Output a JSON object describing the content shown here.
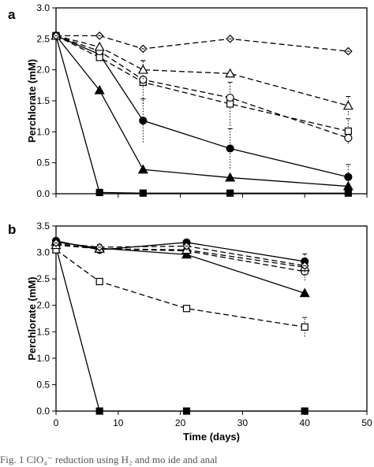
{
  "chart_data": [
    {
      "panel": "a",
      "type": "line",
      "ylabel": "Perchlorate (mM)",
      "xlabel": "",
      "xlim": [
        0,
        50
      ],
      "ylim": [
        0,
        3.0
      ],
      "yticks": [
        "0.0",
        "0.5",
        "1.0",
        "1.5",
        "2.0",
        "2.5",
        "3.0"
      ],
      "grid": false,
      "series": [
        {
          "marker": "square-filled",
          "line": "solid",
          "x": [
            0,
            7,
            14,
            28,
            47
          ],
          "y": [
            2.55,
            0.02,
            0.01,
            0.01,
            0.01
          ]
        },
        {
          "marker": "triangle-filled",
          "line": "solid",
          "x": [
            0,
            7,
            14,
            28,
            47
          ],
          "y": [
            2.55,
            1.67,
            0.39,
            0.26,
            0.12
          ]
        },
        {
          "marker": "circle-filled",
          "line": "solid",
          "x": [
            0,
            7,
            14,
            28,
            47
          ],
          "y": [
            2.55,
            2.25,
            1.18,
            0.73,
            0.27
          ],
          "err": [
            0,
            0,
            0.35,
            0.32,
            0.2
          ]
        },
        {
          "marker": "square-open",
          "line": "dashed",
          "x": [
            0,
            7,
            14,
            28,
            47
          ],
          "y": [
            2.55,
            2.2,
            1.8,
            1.45,
            1.01
          ],
          "err": [
            0,
            0,
            0.35,
            0.35,
            0.2
          ]
        },
        {
          "marker": "circle-open",
          "line": "dashed",
          "x": [
            0,
            7,
            14,
            28,
            47
          ],
          "y": [
            2.55,
            2.3,
            1.84,
            1.55,
            0.9
          ]
        },
        {
          "marker": "triangle-open",
          "line": "dashed",
          "x": [
            0,
            7,
            14,
            28,
            47
          ],
          "y": [
            2.55,
            2.37,
            2.0,
            1.94,
            1.42
          ],
          "err": [
            0,
            0,
            0.15,
            0,
            0.15
          ]
        },
        {
          "marker": "diamond-open",
          "line": "dashed",
          "x": [
            0,
            7,
            14,
            28,
            47
          ],
          "y": [
            2.55,
            2.55,
            2.34,
            2.5,
            2.3
          ]
        }
      ]
    },
    {
      "panel": "b",
      "type": "line",
      "ylabel": "Perchlorate (mM)",
      "xlabel": "Time (days)",
      "xlim": [
        0,
        50
      ],
      "ylim": [
        0,
        3.5
      ],
      "yticks": [
        "0.0",
        "0.5",
        "1.0",
        "1.5",
        "2.0",
        "2.5",
        "3.0",
        "3.5"
      ],
      "xticks": [
        "0",
        "10",
        "20",
        "30",
        "40",
        "50"
      ],
      "grid": false,
      "series": [
        {
          "marker": "square-filled",
          "line": "solid",
          "x": [
            0,
            7,
            21,
            40
          ],
          "y": [
            3.1,
            0.0,
            0.0,
            0.0
          ]
        },
        {
          "marker": "triangle-filled",
          "line": "solid",
          "x": [
            0,
            7,
            21,
            40
          ],
          "y": [
            3.2,
            3.08,
            2.96,
            2.23
          ]
        },
        {
          "marker": "circle-filled",
          "line": "solid",
          "x": [
            0,
            7,
            21,
            40
          ],
          "y": [
            3.22,
            3.05,
            3.19,
            2.83
          ]
        },
        {
          "marker": "square-open",
          "line": "dashed",
          "x": [
            0,
            7,
            21,
            40
          ],
          "y": [
            3.05,
            2.45,
            1.94,
            1.59
          ],
          "err": [
            0,
            0.05,
            0,
            0.18
          ]
        },
        {
          "marker": "circle-open",
          "line": "dashed",
          "x": [
            0,
            7,
            21,
            40
          ],
          "y": [
            3.16,
            3.07,
            3.03,
            2.64
          ]
        },
        {
          "marker": "triangle-open",
          "line": "dashed",
          "x": [
            0,
            7,
            21,
            40
          ],
          "y": [
            3.14,
            3.07,
            3.05,
            2.72
          ],
          "err": [
            0,
            0.08,
            0,
            0.25
          ]
        },
        {
          "marker": "diamond-open",
          "line": "dashed",
          "x": [
            0,
            7,
            21,
            40
          ],
          "y": [
            3.18,
            3.1,
            3.12,
            2.75
          ]
        }
      ]
    }
  ],
  "caption": "Fig. 1  ClO₄⁻ reduction using  H₂  and  mo           ide  and  anal"
}
